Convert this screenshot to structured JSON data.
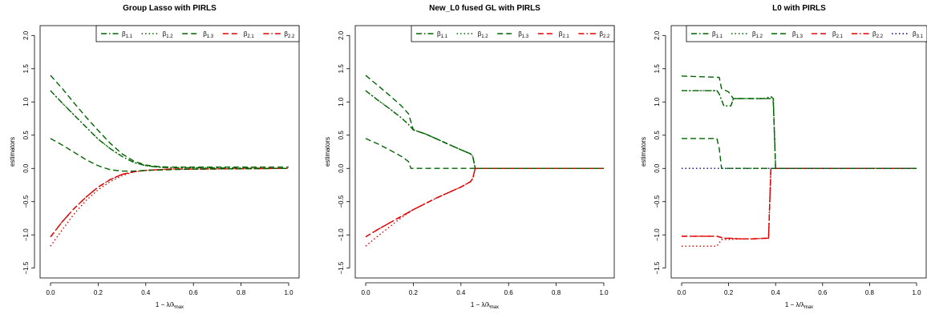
{
  "chart_data": [
    {
      "type": "line",
      "title": "Group Lasso  with PIRLS",
      "xlabel": "1 − λ/λmax",
      "ylabel": "estimators",
      "xlim": [
        0,
        1
      ],
      "ylim": [
        -1.6,
        2.1
      ],
      "xticks": [
        "0.0",
        "0.2",
        "0.4",
        "0.6",
        "0.8",
        "1.0"
      ],
      "yticks": [
        "−1.5",
        "−1.0",
        "−0.5",
        "0.0",
        "0.5",
        "1.0",
        "1.5",
        "2.0"
      ],
      "legend_position": "top-right",
      "series": [
        {
          "name": "β1.1",
          "color": "#006400",
          "dash": "dashdot",
          "x": [
            0,
            0.05,
            0.1,
            0.15,
            0.2,
            0.25,
            0.3,
            0.35,
            0.4,
            0.45,
            0.5,
            0.6,
            1.0
          ],
          "y": [
            1.17,
            0.98,
            0.8,
            0.62,
            0.44,
            0.3,
            0.18,
            0.09,
            0.04,
            0.02,
            0.01,
            0.01,
            0.0
          ]
        },
        {
          "name": "β1.2",
          "color": "#006400",
          "dash": "dotted",
          "x": [
            0,
            0.05,
            0.1,
            0.15,
            0.2,
            0.25,
            0.3,
            0.35,
            0.4,
            0.45,
            0.5,
            0.6,
            1.0
          ],
          "y": [
            1.17,
            0.98,
            0.8,
            0.62,
            0.44,
            0.3,
            0.18,
            0.09,
            0.04,
            0.02,
            0.01,
            0.01,
            0.0
          ]
        },
        {
          "name": "β1.3",
          "color": "#006400",
          "dash": "dashed",
          "x": [
            0,
            0.05,
            0.1,
            0.15,
            0.2,
            0.25,
            0.3,
            0.35,
            0.4,
            0.45,
            0.5,
            0.6,
            1.0
          ],
          "y": [
            1.4,
            1.2,
            0.98,
            0.77,
            0.57,
            0.38,
            0.22,
            0.11,
            0.05,
            0.03,
            0.02,
            0.02,
            0.02
          ]
        },
        {
          "name": "β2.1",
          "color": "#e00000",
          "dash": "dashed",
          "x": [
            0,
            0.05,
            0.1,
            0.15,
            0.2,
            0.25,
            0.3,
            0.35,
            0.4,
            0.45,
            0.5,
            0.6,
            1.0
          ],
          "y": [
            -1.03,
            -0.8,
            -0.6,
            -0.43,
            -0.28,
            -0.17,
            -0.09,
            -0.05,
            -0.03,
            -0.02,
            -0.01,
            -0.01,
            0.0
          ]
        },
        {
          "name": "β2.2",
          "color": "#e00000",
          "dash": "dashdot",
          "x": [
            0,
            0.05,
            0.1,
            0.15,
            0.2,
            0.25,
            0.3,
            0.35,
            0.4,
            0.45,
            0.5,
            0.6,
            1.0
          ],
          "y": [
            -1.03,
            -0.8,
            -0.6,
            -0.43,
            -0.28,
            -0.17,
            -0.09,
            -0.05,
            -0.03,
            -0.02,
            -0.01,
            -0.01,
            0.0
          ]
        },
        {
          "name": "",
          "color": "#e00000",
          "dash": "dotted",
          "x": [
            0,
            0.05,
            0.1,
            0.15,
            0.2,
            0.25,
            0.3,
            0.35,
            0.4,
            0.45,
            0.5,
            0.6,
            1.0
          ],
          "y": [
            -1.17,
            -0.92,
            -0.68,
            -0.48,
            -0.32,
            -0.2,
            -0.11,
            -0.05,
            -0.03,
            -0.02,
            -0.01,
            -0.01,
            0.0
          ]
        },
        {
          "name": "",
          "color": "#006400",
          "dash": "dashed",
          "x": [
            0,
            0.05,
            0.1,
            0.15,
            0.2,
            0.25,
            0.3,
            0.35,
            0.4,
            0.5,
            0.6,
            1.0
          ],
          "y": [
            0.45,
            0.35,
            0.24,
            0.13,
            0.04,
            -0.02,
            -0.04,
            -0.04,
            -0.03,
            -0.02,
            -0.01,
            0.0
          ]
        }
      ]
    },
    {
      "type": "line",
      "title": "New_L0 fused GL with PIRLS",
      "xlabel": "1 − λ/λmax",
      "ylabel": "estimators",
      "xlim": [
        0,
        1
      ],
      "ylim": [
        -1.6,
        2.1
      ],
      "xticks": [
        "0.0",
        "0.2",
        "0.4",
        "0.6",
        "0.8",
        "1.0"
      ],
      "yticks": [
        "−1.5",
        "−1.0",
        "−0.5",
        "0.0",
        "0.5",
        "1.0",
        "1.5",
        "2.0"
      ],
      "legend_position": "top-right",
      "series": [
        {
          "name": "β1.1",
          "color": "#006400",
          "dash": "dashdot",
          "x": [
            0,
            0.05,
            0.1,
            0.15,
            0.18,
            0.2,
            0.25,
            0.3,
            0.35,
            0.4,
            0.44,
            0.45,
            0.46,
            0.5,
            1.0
          ],
          "y": [
            1.17,
            1.03,
            0.9,
            0.76,
            0.66,
            0.58,
            0.52,
            0.44,
            0.36,
            0.28,
            0.22,
            0.18,
            0.0,
            0.0,
            0.0
          ]
        },
        {
          "name": "β1.2",
          "color": "#006400",
          "dash": "dotted",
          "x": [
            0,
            0.05,
            0.1,
            0.15,
            0.18,
            0.2,
            0.25,
            0.3,
            0.35,
            0.4,
            0.44,
            0.45,
            0.46,
            0.5,
            1.0
          ],
          "y": [
            1.17,
            1.03,
            0.9,
            0.76,
            0.66,
            0.58,
            0.52,
            0.44,
            0.36,
            0.28,
            0.22,
            0.18,
            0.0,
            0.0,
            0.0
          ]
        },
        {
          "name": "β1.3",
          "color": "#006400",
          "dash": "dashed",
          "x": [
            0,
            0.05,
            0.1,
            0.15,
            0.18,
            0.2,
            0.25,
            0.3,
            0.35,
            0.4,
            0.44,
            0.45,
            0.46,
            0.5,
            1.0
          ],
          "y": [
            1.4,
            1.25,
            1.1,
            0.94,
            0.82,
            0.58,
            0.52,
            0.44,
            0.36,
            0.28,
            0.22,
            0.18,
            0.0,
            0.0,
            0.0
          ]
        },
        {
          "name": "β2.1",
          "color": "#e00000",
          "dash": "dashed",
          "x": [
            0,
            0.05,
            0.1,
            0.15,
            0.2,
            0.25,
            0.3,
            0.35,
            0.4,
            0.44,
            0.45,
            0.46,
            0.5,
            1.0
          ],
          "y": [
            -1.03,
            -0.92,
            -0.82,
            -0.72,
            -0.62,
            -0.53,
            -0.44,
            -0.36,
            -0.28,
            -0.2,
            -0.15,
            0.0,
            0.0,
            0.0
          ]
        },
        {
          "name": "β2.2",
          "color": "#e00000",
          "dash": "dashdot",
          "x": [
            0,
            0.05,
            0.1,
            0.15,
            0.2,
            0.25,
            0.3,
            0.35,
            0.4,
            0.44,
            0.45,
            0.46,
            0.5,
            1.0
          ],
          "y": [
            -1.03,
            -0.92,
            -0.82,
            -0.72,
            -0.62,
            -0.53,
            -0.44,
            -0.36,
            -0.28,
            -0.2,
            -0.15,
            0.0,
            0.0,
            0.0
          ]
        },
        {
          "name": "",
          "color": "#e00000",
          "dash": "dotted",
          "x": [
            0,
            0.05,
            0.1,
            0.15,
            0.2,
            0.25,
            0.3,
            0.35,
            0.4,
            0.44,
            0.45,
            0.46,
            0.5,
            1.0
          ],
          "y": [
            -1.17,
            -1.02,
            -0.88,
            -0.74,
            -0.62,
            -0.53,
            -0.44,
            -0.36,
            -0.28,
            -0.2,
            -0.15,
            0.0,
            0.0,
            0.0
          ]
        },
        {
          "name": "",
          "color": "#006400",
          "dash": "dashed",
          "x": [
            0,
            0.05,
            0.1,
            0.15,
            0.17,
            0.18,
            0.19,
            0.2,
            0.5,
            1.0
          ],
          "y": [
            0.45,
            0.37,
            0.28,
            0.18,
            0.13,
            0.1,
            0.0,
            0.0,
            0.0,
            0.0
          ]
        }
      ]
    },
    {
      "type": "line",
      "title": "L0  with PIRLS",
      "xlabel": "1 − λ/λmax",
      "ylabel": "estimators",
      "xlim": [
        0,
        1
      ],
      "ylim": [
        -1.6,
        2.1
      ],
      "xticks": [
        "0.0",
        "0.2",
        "0.4",
        "0.6",
        "0.8",
        "1.0"
      ],
      "yticks": [
        "−1.5",
        "−1.0",
        "−0.5",
        "0.0",
        "0.5",
        "1.0",
        "1.5",
        "2.0"
      ],
      "legend_position": "top-right",
      "series": [
        {
          "name": "β1.1",
          "color": "#006400",
          "dash": "dashdot",
          "x": [
            0,
            0.15,
            0.16,
            0.18,
            0.21,
            0.22,
            0.25,
            0.3,
            0.35,
            0.38,
            0.39,
            0.4,
            0.5,
            1.0
          ],
          "y": [
            1.17,
            1.17,
            1.12,
            0.94,
            0.94,
            1.05,
            1.05,
            1.05,
            1.05,
            1.08,
            1.05,
            0.0,
            0.0,
            0.0
          ]
        },
        {
          "name": "β1.2",
          "color": "#006400",
          "dash": "dotted",
          "x": [
            0,
            0.15,
            0.16,
            0.18,
            0.21,
            0.22,
            0.25,
            0.3,
            0.35,
            0.38,
            0.39,
            0.4,
            0.5,
            1.0
          ],
          "y": [
            1.17,
            1.17,
            1.12,
            0.94,
            0.94,
            1.05,
            1.05,
            1.05,
            1.05,
            1.08,
            1.05,
            0.0,
            0.0,
            0.0
          ]
        },
        {
          "name": "β1.3",
          "color": "#006400",
          "dash": "dashed",
          "x": [
            0,
            0.16,
            0.17,
            0.2,
            0.21,
            0.22,
            0.3,
            0.38,
            0.39,
            0.4,
            0.5,
            1.0
          ],
          "y": [
            1.39,
            1.37,
            1.2,
            1.15,
            1.1,
            1.05,
            1.05,
            1.05,
            1.0,
            0.0,
            0.0,
            0.0
          ]
        },
        {
          "name": "β2.1",
          "color": "#e00000",
          "dash": "dashed",
          "x": [
            0,
            0.15,
            0.18,
            0.2,
            0.25,
            0.3,
            0.36,
            0.37,
            0.38,
            0.5,
            1.0
          ],
          "y": [
            -1.02,
            -1.02,
            -1.05,
            -1.05,
            -1.06,
            -1.06,
            -1.05,
            -1.05,
            0.0,
            0.0,
            0.0
          ]
        },
        {
          "name": "β2.2",
          "color": "#e00000",
          "dash": "dashdot",
          "x": [
            0,
            0.15,
            0.18,
            0.2,
            0.25,
            0.3,
            0.36,
            0.37,
            0.38,
            0.5,
            1.0
          ],
          "y": [
            -1.02,
            -1.02,
            -1.05,
            -1.05,
            -1.06,
            -1.06,
            -1.05,
            -1.05,
            0.0,
            0.0,
            0.0
          ]
        },
        {
          "name": "β3.1",
          "color": "#00008b",
          "dash": "dotted",
          "x": [
            0,
            1.0
          ],
          "y": [
            0.0,
            0.0
          ]
        },
        {
          "name": "",
          "color": "#e00000",
          "dash": "dotted",
          "x": [
            0,
            0.15,
            0.17,
            0.2,
            0.25,
            0.3,
            0.36,
            0.37,
            0.38,
            0.5,
            1.0
          ],
          "y": [
            -1.17,
            -1.17,
            -1.07,
            -1.07,
            -1.06,
            -1.06,
            -1.05,
            -1.05,
            0.0,
            0.0,
            0.0
          ]
        },
        {
          "name": "",
          "color": "#006400",
          "dash": "dashed",
          "x": [
            0,
            0.15,
            0.16,
            0.17,
            0.2,
            0.5,
            1.0
          ],
          "y": [
            0.45,
            0.45,
            0.3,
            0.0,
            0.0,
            0.0,
            0.0
          ]
        }
      ]
    }
  ]
}
